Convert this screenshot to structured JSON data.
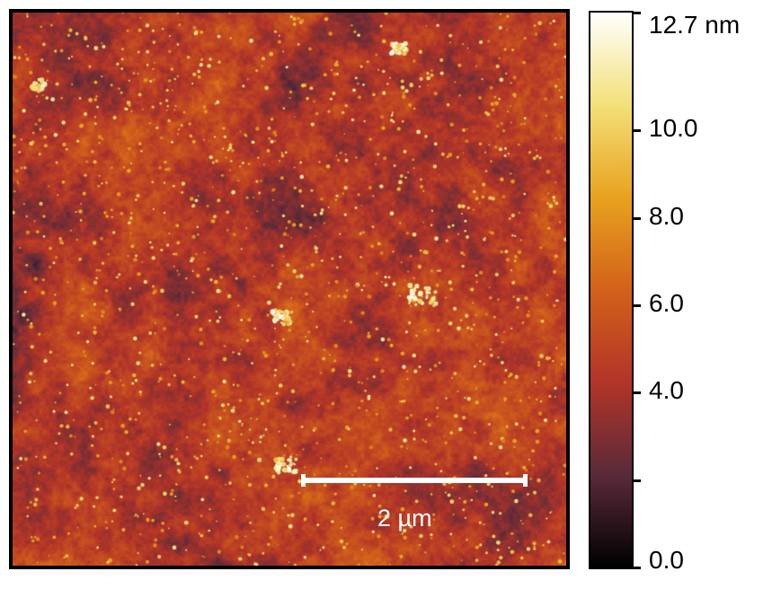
{
  "image": {
    "scale_bar_label": "2 µm",
    "colormap": [
      "#000000",
      "#5a2a3a",
      "#b23428",
      "#d2611a",
      "#e8a21f",
      "#f3e079",
      "#ffffff"
    ]
  },
  "colorbar": {
    "unit": "nm",
    "range": [
      0.0,
      12.7
    ],
    "ticks": [
      {
        "value": 12.7,
        "label": "12.7 nm"
      },
      {
        "value": 10.0,
        "label": "10.0"
      },
      {
        "value": 8.0,
        "label": "8.0"
      },
      {
        "value": 6.0,
        "label": "6.0"
      },
      {
        "value": 4.0,
        "label": "4.0"
      },
      {
        "value": 2.0,
        "label": ""
      },
      {
        "value": 0.0,
        "label": "0.0"
      }
    ]
  }
}
